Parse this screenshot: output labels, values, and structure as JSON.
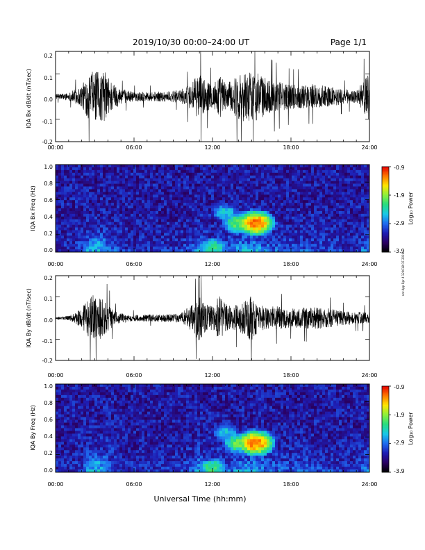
{
  "header": {
    "title": "2019/10/30  00:00–24:00 UT",
    "page": "Page 1/1"
  },
  "footer": {
    "xlabel": "Universal Time (hh:mm)"
  },
  "side_note": "not App Rpr 4 120018 OF 2019",
  "colors": {
    "trace": "#000000",
    "colormap": [
      "#000000",
      "#2a0063",
      "#1e1eb4",
      "#1f6cf0",
      "#19c8e8",
      "#28dc80",
      "#8cf03c",
      "#ffe600",
      "#ff7800",
      "#e60000"
    ]
  },
  "chart_data": [
    {
      "type": "line",
      "ylabel": "IQA Bx dB/dt (nT/sec)",
      "xlim": [
        0,
        24
      ],
      "ylim": [
        -0.2,
        0.2
      ],
      "xticks": [
        "00:00",
        "06:00",
        "12:00",
        "18:00",
        "24:00"
      ],
      "yticks": [
        "0.2",
        "0.1",
        "0.0",
        "-0.1",
        "-0.2"
      ],
      "activity_envelope": {
        "hours": [
          0,
          1,
          2,
          2.6,
          3.2,
          3.8,
          4.5,
          5,
          6,
          8,
          9.5,
          10.5,
          11,
          11.5,
          12,
          12.5,
          13,
          13.5,
          14,
          14.5,
          15,
          15.5,
          16,
          17,
          18,
          19,
          20,
          21,
          22,
          23,
          24
        ],
        "amplitude": [
          0.02,
          0.03,
          0.09,
          0.2,
          0.2,
          0.2,
          0.1,
          0.06,
          0.04,
          0.04,
          0.05,
          0.12,
          0.2,
          0.12,
          0.1,
          0.18,
          0.12,
          0.12,
          0.2,
          0.2,
          0.2,
          0.2,
          0.15,
          0.12,
          0.1,
          0.1,
          0.1,
          0.08,
          0.06,
          0.05,
          0.2
        ]
      }
    },
    {
      "type": "heatmap",
      "ylabel": "IQA Bx Freq (Hz)",
      "xlim": [
        0,
        24
      ],
      "ylim": [
        0.0,
        1.0
      ],
      "xticks": [
        "00:00",
        "06:00",
        "12:00",
        "18:00",
        "24:00"
      ],
      "yticks": [
        "1.0",
        "0.8",
        "0.6",
        "0.4",
        "0.2",
        "0.0"
      ],
      "colorbar": {
        "label": "Log₁₀ Power",
        "ticks": [
          "-0.9",
          "-1.9",
          "-2.9",
          "-3.9"
        ],
        "range": [
          -3.9,
          -0.9
        ]
      },
      "features": [
        {
          "hour": 15.3,
          "freq": 0.33,
          "peak_log_power": -1.0
        },
        {
          "hour": 14.0,
          "freq": 0.33,
          "peak_log_power": -1.8
        },
        {
          "hour": 13.0,
          "freq": 0.45,
          "peak_log_power": -2.3
        },
        {
          "hour": 3.2,
          "freq": 0.1,
          "peak_log_power": -2.5
        },
        {
          "hour": 12.0,
          "freq": 0.05,
          "peak_log_power": -2.0
        }
      ]
    },
    {
      "type": "line",
      "ylabel": "IQA By dB/dt (nT/sec)",
      "xlim": [
        0,
        24
      ],
      "ylim": [
        -0.2,
        0.2
      ],
      "xticks": [
        "00:00",
        "06:00",
        "12:00",
        "18:00",
        "24:00"
      ],
      "yticks": [
        "0.2",
        "0.1",
        "0.0",
        "-0.1",
        "-0.2"
      ],
      "activity_envelope": {
        "hours": [
          0,
          1,
          2,
          2.6,
          3.2,
          3.8,
          4.5,
          5,
          6,
          8,
          9.5,
          10.5,
          11,
          11.5,
          12,
          12.5,
          13,
          13.5,
          14,
          14.5,
          15,
          15.5,
          16,
          17,
          18,
          19,
          20,
          21,
          22,
          23,
          24
        ],
        "amplitude": [
          0.01,
          0.02,
          0.08,
          0.2,
          0.2,
          0.15,
          0.06,
          0.04,
          0.03,
          0.03,
          0.04,
          0.12,
          0.2,
          0.12,
          0.1,
          0.2,
          0.12,
          0.1,
          0.12,
          0.15,
          0.2,
          0.12,
          0.1,
          0.1,
          0.08,
          0.09,
          0.1,
          0.08,
          0.06,
          0.05,
          0.05
        ]
      }
    },
    {
      "type": "heatmap",
      "ylabel": "IQA By Freq (Hz)",
      "xlim": [
        0,
        24
      ],
      "ylim": [
        0.0,
        1.0
      ],
      "xticks": [
        "00:00",
        "06:00",
        "12:00",
        "18:00",
        "24:00"
      ],
      "yticks": [
        "1.0",
        "0.8",
        "0.6",
        "0.4",
        "0.2",
        "0.0"
      ],
      "colorbar": {
        "label": "Log₁₀ Power",
        "ticks": [
          "-0.9",
          "-1.9",
          "-2.9",
          "-3.9"
        ],
        "range": [
          -3.9,
          -0.9
        ]
      },
      "features": [
        {
          "hour": 15.3,
          "freq": 0.33,
          "peak_log_power": -1.0
        },
        {
          "hour": 14.0,
          "freq": 0.33,
          "peak_log_power": -1.8
        },
        {
          "hour": 13.0,
          "freq": 0.45,
          "peak_log_power": -2.3
        },
        {
          "hour": 3.2,
          "freq": 0.1,
          "peak_log_power": -2.5
        },
        {
          "hour": 12.0,
          "freq": 0.05,
          "peak_log_power": -2.0
        }
      ]
    }
  ]
}
